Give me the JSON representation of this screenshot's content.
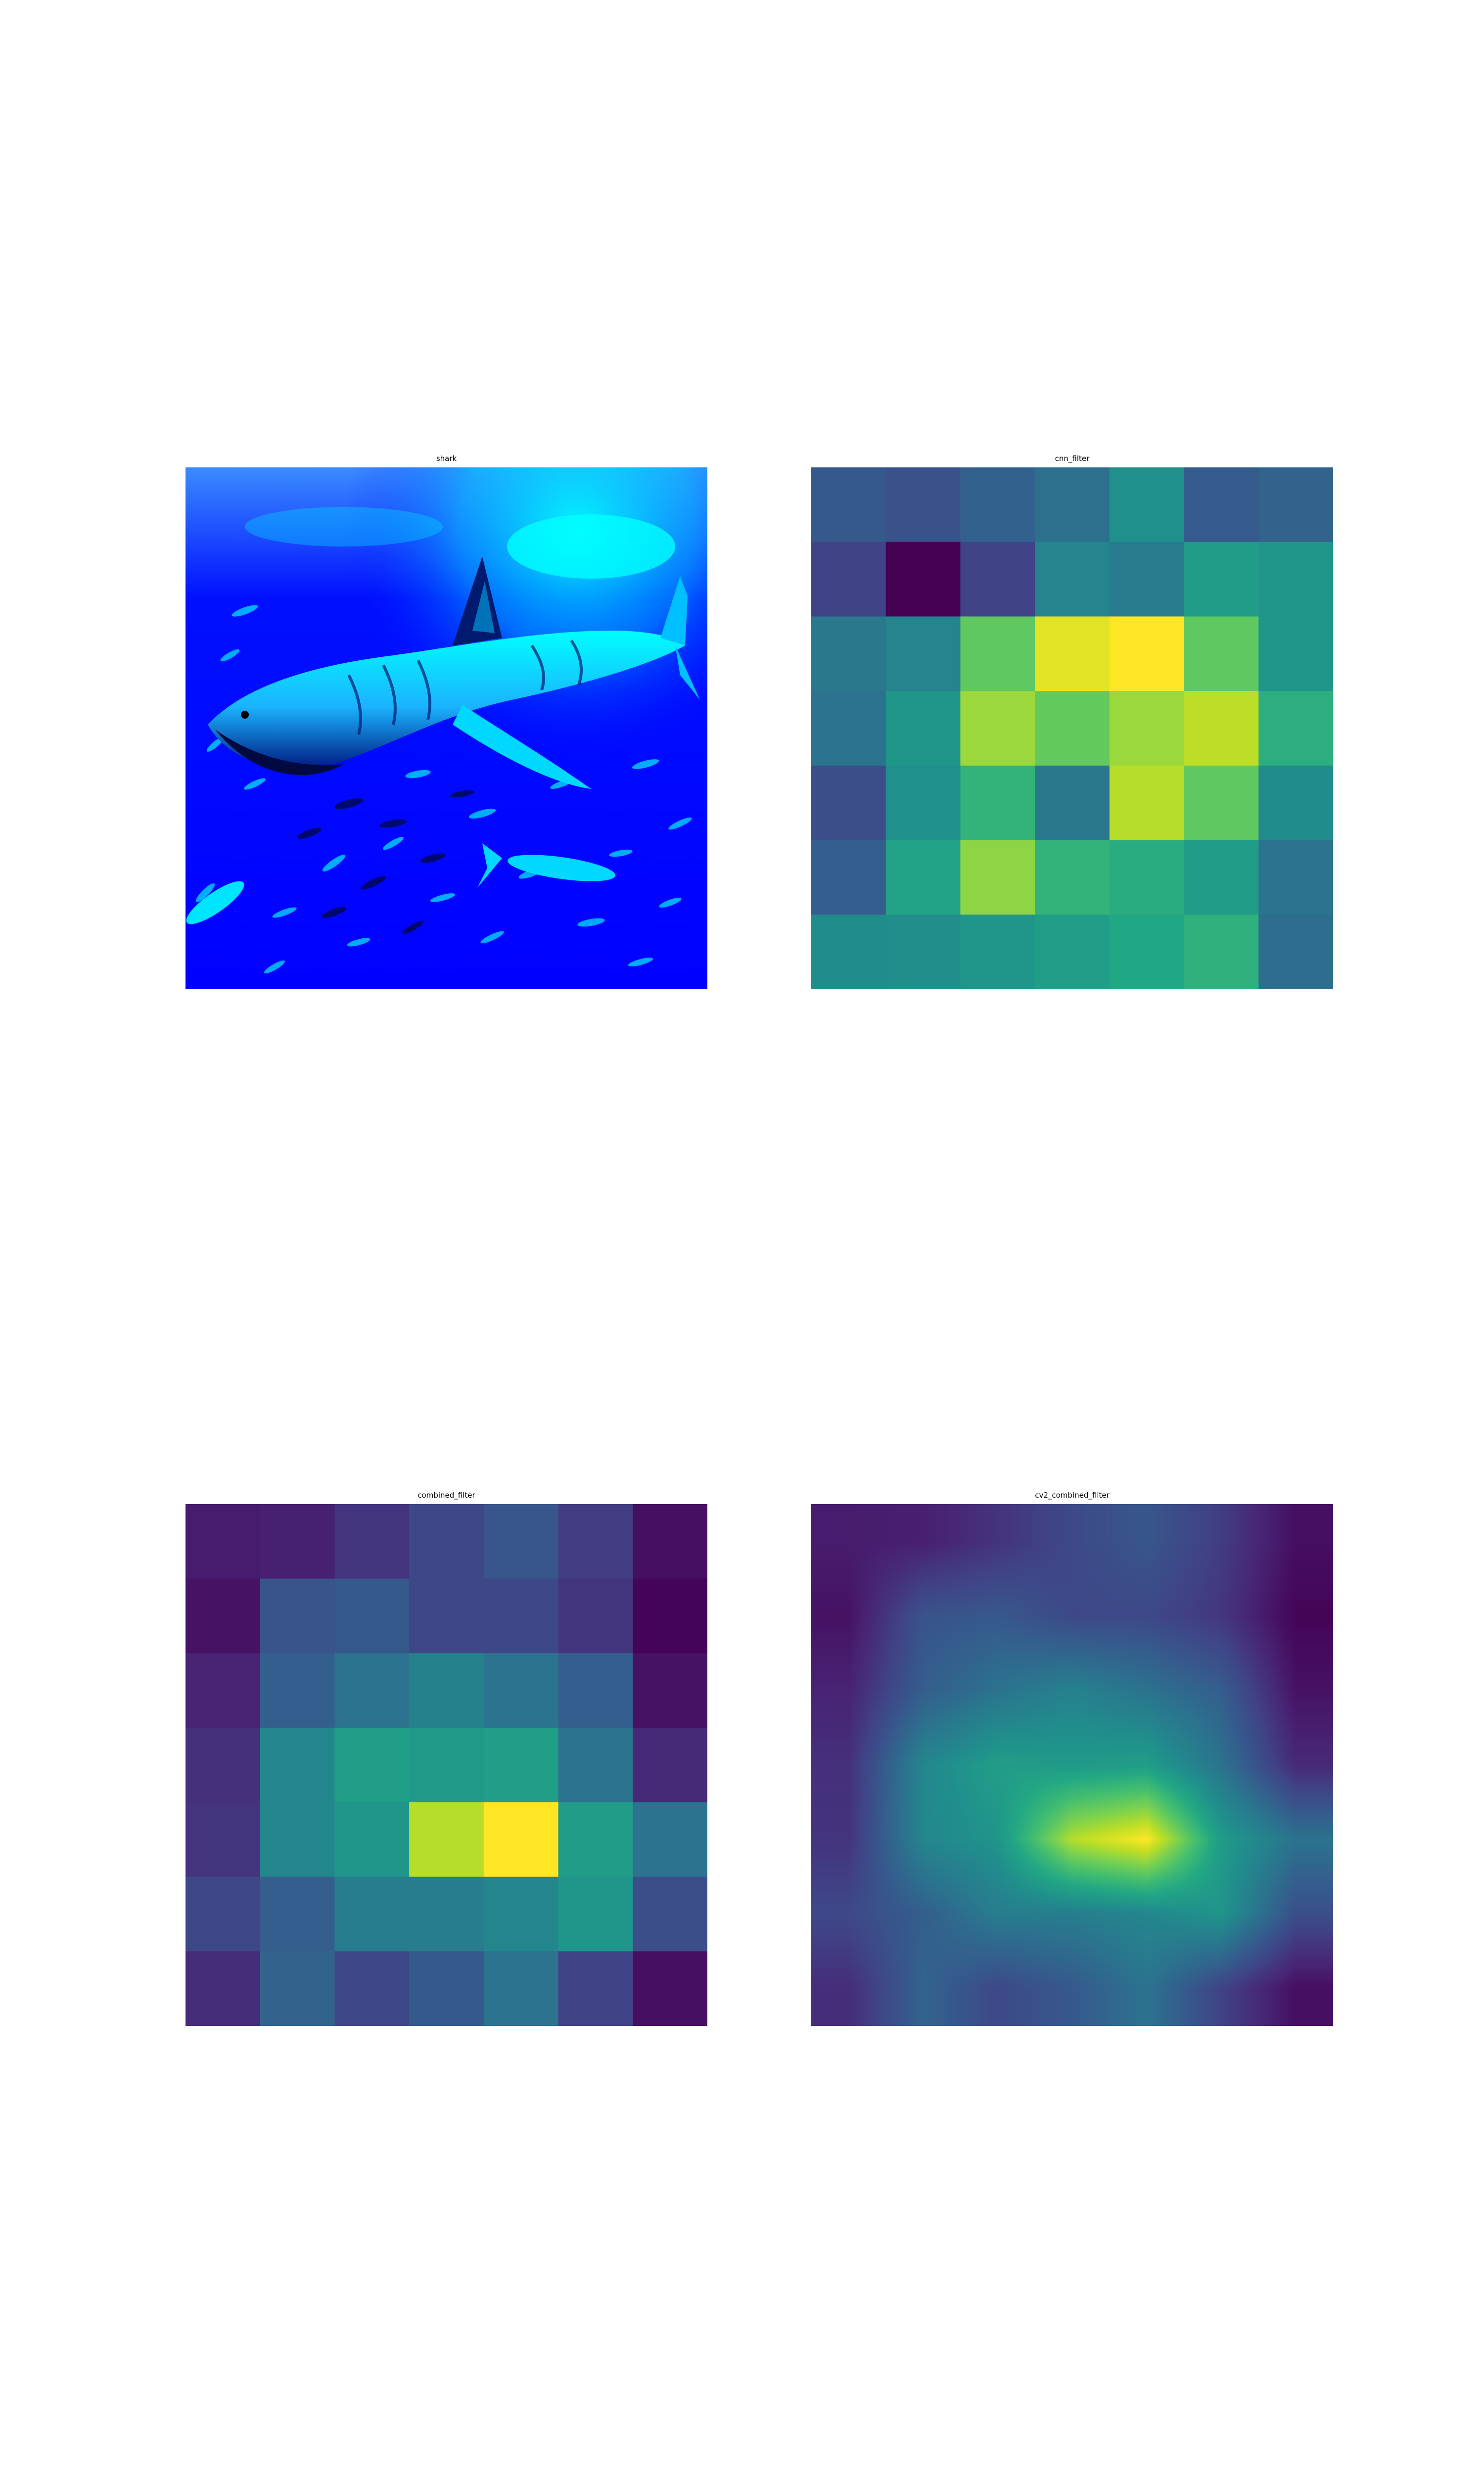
{
  "figure": {
    "panels": [
      {
        "title": "shark",
        "kind": "photo",
        "icon": "shark-photo"
      },
      {
        "title": "cnn_filter",
        "kind": "heatmap"
      },
      {
        "title": "combined_filter",
        "kind": "heatmap"
      },
      {
        "title": "cv2_combined_filter",
        "kind": "heatmap-smooth"
      }
    ]
  },
  "chart_data": [
    {
      "type": "image",
      "title": "shark",
      "colors": {
        "water": "#0000ff",
        "highlight": "#00ffff",
        "dark": "#001060"
      }
    },
    {
      "type": "heatmap",
      "title": "cnn_filter",
      "colormap": "viridis",
      "values": [
        [
          0.28,
          0.25,
          0.31,
          0.37,
          0.5,
          0.29,
          0.32
        ],
        [
          0.2,
          0.0,
          0.2,
          0.45,
          0.41,
          0.55,
          0.52
        ],
        [
          0.4,
          0.45,
          0.75,
          0.96,
          1.0,
          0.75,
          0.52
        ],
        [
          0.38,
          0.52,
          0.85,
          0.76,
          0.85,
          0.9,
          0.63
        ],
        [
          0.24,
          0.5,
          0.65,
          0.4,
          0.89,
          0.75,
          0.48
        ],
        [
          0.3,
          0.58,
          0.83,
          0.65,
          0.62,
          0.55,
          0.38
        ],
        [
          0.48,
          0.49,
          0.52,
          0.56,
          0.6,
          0.64,
          0.36
        ]
      ]
    },
    {
      "type": "heatmap",
      "title": "combined_filter",
      "colormap": "viridis",
      "values": [
        [
          0.08,
          0.09,
          0.15,
          0.22,
          0.27,
          0.18,
          0.04
        ],
        [
          0.05,
          0.26,
          0.28,
          0.22,
          0.22,
          0.16,
          0.01
        ],
        [
          0.1,
          0.3,
          0.38,
          0.44,
          0.38,
          0.3,
          0.05
        ],
        [
          0.14,
          0.46,
          0.56,
          0.54,
          0.56,
          0.38,
          0.12
        ],
        [
          0.15,
          0.46,
          0.52,
          0.89,
          1.0,
          0.55,
          0.38
        ],
        [
          0.22,
          0.3,
          0.42,
          0.42,
          0.46,
          0.52,
          0.24
        ],
        [
          0.13,
          0.32,
          0.22,
          0.28,
          0.38,
          0.2,
          0.04
        ]
      ]
    },
    {
      "type": "heatmap",
      "title": "cv2_combined_filter",
      "colormap": "viridis",
      "interpolation": "bilinear",
      "values": [
        [
          0.08,
          0.09,
          0.15,
          0.22,
          0.27,
          0.18,
          0.04
        ],
        [
          0.05,
          0.26,
          0.28,
          0.22,
          0.22,
          0.16,
          0.01
        ],
        [
          0.1,
          0.3,
          0.38,
          0.44,
          0.38,
          0.3,
          0.05
        ],
        [
          0.14,
          0.46,
          0.56,
          0.54,
          0.56,
          0.38,
          0.12
        ],
        [
          0.15,
          0.46,
          0.52,
          0.89,
          1.0,
          0.55,
          0.38
        ],
        [
          0.22,
          0.3,
          0.42,
          0.42,
          0.46,
          0.52,
          0.24
        ],
        [
          0.13,
          0.32,
          0.22,
          0.28,
          0.38,
          0.2,
          0.04
        ]
      ]
    }
  ]
}
